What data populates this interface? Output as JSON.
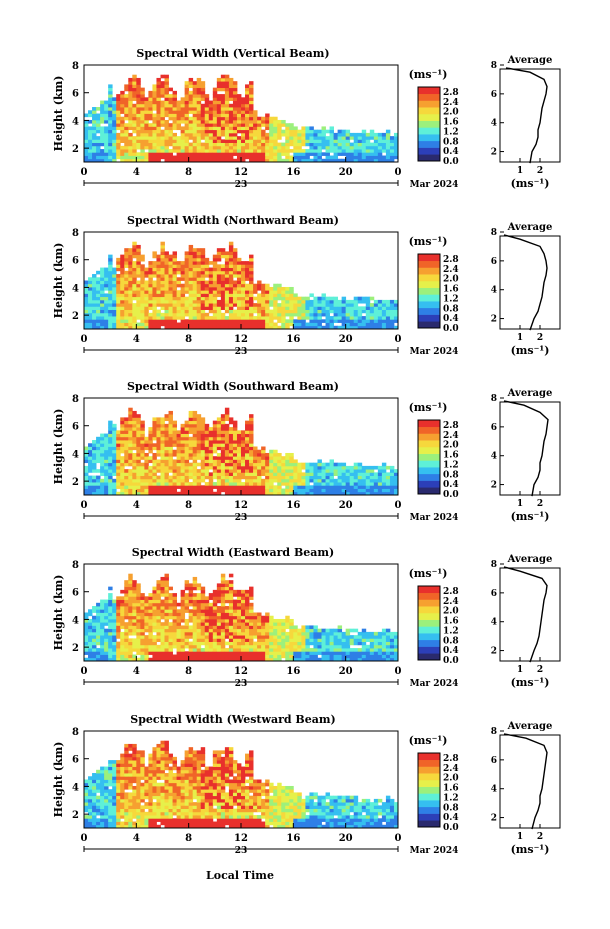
{
  "figure": {
    "bottom_label": "Local Time",
    "date_label": "Mar 2024",
    "day_label": "23",
    "colorbar_unit": "(ms⁻¹)",
    "avg_title": "Average",
    "avg_xlabel": "(ms⁻¹)",
    "colorscale": [
      "#2a2a6e",
      "#2c3fb8",
      "#2e7fe6",
      "#35bff0",
      "#5ef0d8",
      "#9cf07c",
      "#e6f04a",
      "#f6d83c",
      "#f6a030",
      "#f06428",
      "#e8302c"
    ]
  },
  "chart_data": [
    {
      "type": "heatmap",
      "title": "Spectral Width (Vertical Beam)",
      "ylabel": "Height (km)",
      "xticks": [
        "0",
        "4",
        "8",
        "12",
        "16",
        "20",
        "0"
      ],
      "yticks": [
        "2",
        "4",
        "6",
        "8"
      ],
      "xlim": [
        0,
        24
      ],
      "ylim": [
        1,
        8
      ],
      "colorbar_ticks": [
        "2.8",
        "2.4",
        "2.0",
        "1.6",
        "1.2",
        "0.8",
        "0.4",
        "0.0"
      ],
      "colorbar_range": [
        0.0,
        3.0
      ],
      "average_profile": {
        "xticks": [
          "1",
          "2"
        ],
        "yticks": [
          "2",
          "4",
          "6",
          "8"
        ],
        "xlim": [
          0,
          3
        ],
        "ylim": [
          1,
          8
        ],
        "height_km": [
          1.2,
          2.0,
          2.5,
          3.0,
          3.5,
          4.0,
          4.5,
          5.0,
          5.5,
          6.0,
          6.5,
          7.0,
          7.5,
          7.8
        ],
        "width_ms": [
          1.5,
          1.6,
          1.8,
          1.9,
          1.9,
          2.0,
          2.05,
          2.1,
          2.2,
          2.3,
          2.35,
          2.2,
          1.5,
          0.3
        ]
      }
    },
    {
      "type": "heatmap",
      "title": "Spectral Width (Northward Beam)",
      "ylabel": "Height (km)",
      "xticks": [
        "0",
        "4",
        "8",
        "12",
        "16",
        "20",
        "0"
      ],
      "yticks": [
        "2",
        "4",
        "6",
        "8"
      ],
      "xlim": [
        0,
        24
      ],
      "ylim": [
        1,
        8
      ],
      "colorbar_ticks": [
        "2.8",
        "2.4",
        "2.0",
        "1.6",
        "1.2",
        "0.8",
        "0.4",
        "0.0"
      ],
      "colorbar_range": [
        0.0,
        3.0
      ],
      "average_profile": {
        "xticks": [
          "1",
          "2"
        ],
        "yticks": [
          "2",
          "4",
          "6",
          "8"
        ],
        "xlim": [
          0,
          3
        ],
        "ylim": [
          1,
          8
        ],
        "height_km": [
          1.2,
          2.0,
          2.5,
          3.0,
          3.5,
          4.0,
          4.5,
          5.0,
          5.5,
          6.0,
          6.5,
          7.0,
          7.5,
          7.8
        ],
        "width_ms": [
          1.5,
          1.7,
          1.9,
          2.0,
          2.1,
          2.15,
          2.2,
          2.3,
          2.35,
          2.3,
          2.2,
          2.0,
          1.0,
          0.2
        ]
      }
    },
    {
      "type": "heatmap",
      "title": "Spectral Width (Southward Beam)",
      "ylabel": "Height (km)",
      "xticks": [
        "0",
        "4",
        "8",
        "12",
        "16",
        "20",
        "0"
      ],
      "yticks": [
        "2",
        "4",
        "6",
        "8"
      ],
      "xlim": [
        0,
        24
      ],
      "ylim": [
        1,
        8
      ],
      "colorbar_ticks": [
        "2.8",
        "2.4",
        "2.0",
        "1.6",
        "1.2",
        "0.8",
        "0.4",
        "0.0"
      ],
      "colorbar_range": [
        0.0,
        3.0
      ],
      "average_profile": {
        "xticks": [
          "1",
          "2"
        ],
        "yticks": [
          "2",
          "4",
          "6",
          "8"
        ],
        "xlim": [
          0,
          3
        ],
        "ylim": [
          1,
          8
        ],
        "height_km": [
          1.2,
          2.0,
          2.5,
          3.0,
          3.5,
          4.0,
          4.5,
          5.0,
          5.5,
          6.0,
          6.5,
          7.0,
          7.5,
          7.8
        ],
        "width_ms": [
          1.6,
          1.7,
          1.9,
          2.0,
          2.0,
          2.1,
          2.15,
          2.2,
          2.3,
          2.35,
          2.4,
          2.0,
          1.2,
          0.2
        ]
      }
    },
    {
      "type": "heatmap",
      "title": "Spectral Width (Eastward Beam)",
      "ylabel": "Height (km)",
      "xticks": [
        "0",
        "4",
        "8",
        "12",
        "16",
        "20",
        "0"
      ],
      "yticks": [
        "2",
        "4",
        "6",
        "8"
      ],
      "xlim": [
        0,
        24
      ],
      "ylim": [
        1,
        8
      ],
      "colorbar_ticks": [
        "2.8",
        "2.4",
        "2.0",
        "1.6",
        "1.2",
        "0.8",
        "0.4",
        "0.0"
      ],
      "colorbar_range": [
        0.0,
        3.0
      ],
      "average_profile": {
        "xticks": [
          "1",
          "2"
        ],
        "yticks": [
          "2",
          "4",
          "6",
          "8"
        ],
        "xlim": [
          0,
          3
        ],
        "ylim": [
          1,
          8
        ],
        "height_km": [
          1.2,
          2.0,
          2.5,
          3.0,
          3.5,
          4.0,
          4.5,
          5.0,
          5.5,
          6.0,
          6.5,
          7.0,
          7.5,
          7.8
        ],
        "width_ms": [
          1.5,
          1.7,
          1.85,
          1.95,
          2.0,
          2.05,
          2.1,
          2.15,
          2.2,
          2.3,
          2.35,
          2.1,
          1.0,
          0.2
        ]
      }
    },
    {
      "type": "heatmap",
      "title": "Spectral Width (Westward Beam)",
      "ylabel": "Height (km)",
      "xticks": [
        "0",
        "4",
        "8",
        "12",
        "16",
        "20",
        "0"
      ],
      "yticks": [
        "2",
        "4",
        "6",
        "8"
      ],
      "xlim": [
        0,
        24
      ],
      "ylim": [
        1,
        8
      ],
      "colorbar_ticks": [
        "2.8",
        "2.4",
        "2.0",
        "1.6",
        "1.2",
        "0.8",
        "0.4",
        "0.0"
      ],
      "colorbar_range": [
        0.0,
        3.0
      ],
      "average_profile": {
        "xticks": [
          "1",
          "2"
        ],
        "yticks": [
          "2",
          "4",
          "6",
          "8"
        ],
        "xlim": [
          0,
          3
        ],
        "ylim": [
          1,
          8
        ],
        "height_km": [
          1.2,
          2.0,
          2.5,
          3.0,
          3.5,
          4.0,
          4.5,
          5.0,
          5.5,
          6.0,
          6.5,
          7.0,
          7.5,
          7.8
        ],
        "width_ms": [
          1.6,
          1.75,
          1.9,
          2.0,
          2.0,
          2.1,
          2.15,
          2.2,
          2.25,
          2.3,
          2.35,
          2.2,
          1.3,
          0.2
        ]
      }
    }
  ]
}
